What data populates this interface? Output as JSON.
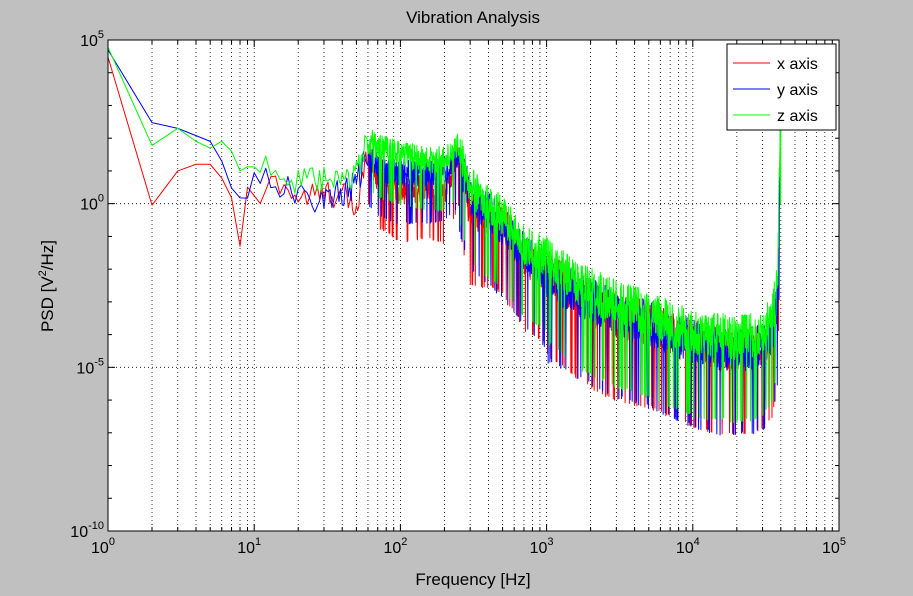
{
  "chart_data": {
    "type": "line",
    "title": "Vibration Analysis",
    "xlabel": "Frequency [Hz]",
    "ylabel_parts": {
      "main": "PSD [V",
      "sup": "2",
      "tail": "/Hz]"
    },
    "xscale": "log",
    "yscale": "log",
    "xlim": [
      1,
      100000
    ],
    "ylim": [
      1e-10,
      100000
    ],
    "x_ticks": [
      {
        "base": "10",
        "exp": "0",
        "value": 1
      },
      {
        "base": "10",
        "exp": "1",
        "value": 10
      },
      {
        "base": "10",
        "exp": "2",
        "value": 100
      },
      {
        "base": "10",
        "exp": "3",
        "value": 1000
      },
      {
        "base": "10",
        "exp": "4",
        "value": 10000
      },
      {
        "base": "10",
        "exp": "5",
        "value": 100000
      }
    ],
    "y_ticks": [
      {
        "base": "10",
        "exp": "-10",
        "value": 1e-10
      },
      {
        "base": "10",
        "exp": "-5",
        "value": 1e-05
      },
      {
        "base": "10",
        "exp": "0",
        "value": 1
      },
      {
        "base": "10",
        "exp": "5",
        "value": 100000
      }
    ],
    "grid": true,
    "legend_position": "top-right",
    "series": [
      {
        "name": "x axis",
        "color": "#ff0000",
        "points": [
          [
            1,
            30000
          ],
          [
            2,
            0.9
          ],
          [
            3,
            10
          ],
          [
            4,
            16
          ],
          [
            5,
            16
          ],
          [
            6,
            6
          ],
          [
            7,
            1.5
          ],
          [
            8,
            0.05
          ],
          [
            9,
            1.5
          ],
          [
            10,
            3
          ],
          [
            11,
            0.5
          ],
          [
            12,
            3
          ],
          [
            15,
            5
          ],
          [
            20,
            1.5
          ],
          [
            30,
            2
          ],
          [
            40,
            2
          ],
          [
            50,
            0.6
          ],
          [
            60,
            40
          ],
          [
            70,
            5
          ],
          [
            80,
            5
          ],
          [
            100,
            2
          ],
          [
            150,
            3
          ],
          [
            200,
            2
          ],
          [
            250,
            30
          ],
          [
            300,
            0.5
          ],
          [
            400,
            0.4
          ],
          [
            500,
            0.3
          ],
          [
            700,
            0.02
          ],
          [
            1000,
            0.008
          ],
          [
            1500,
            0.002
          ],
          [
            2000,
            0.0008
          ],
          [
            3000,
            0.0003
          ],
          [
            5000,
            0.0002
          ],
          [
            7000,
            0.0001
          ],
          [
            10000,
            5e-05
          ],
          [
            15000,
            3e-05
          ],
          [
            20000,
            3e-05
          ],
          [
            25000,
            3e-05
          ],
          [
            30000,
            4e-05
          ],
          [
            35000,
            0.0001
          ],
          [
            38000,
            0.001
          ],
          [
            40000,
            500
          ]
        ]
      },
      {
        "name": "y axis",
        "color": "#0000ff",
        "points": [
          [
            1,
            50000
          ],
          [
            2,
            300
          ],
          [
            3,
            200
          ],
          [
            4,
            120
          ],
          [
            5,
            80
          ],
          [
            6,
            20
          ],
          [
            7,
            3
          ],
          [
            8,
            1.5
          ],
          [
            9,
            3
          ],
          [
            10,
            5
          ],
          [
            12,
            8
          ],
          [
            15,
            4
          ],
          [
            20,
            1.5
          ],
          [
            30,
            1.5
          ],
          [
            40,
            2
          ],
          [
            50,
            4
          ],
          [
            60,
            30
          ],
          [
            70,
            15
          ],
          [
            80,
            10
          ],
          [
            100,
            8
          ],
          [
            150,
            8
          ],
          [
            200,
            10
          ],
          [
            250,
            25
          ],
          [
            300,
            1.5
          ],
          [
            400,
            0.5
          ],
          [
            500,
            0.2
          ],
          [
            700,
            0.03
          ],
          [
            1000,
            0.005
          ],
          [
            1500,
            0.002
          ],
          [
            2000,
            0.001
          ],
          [
            3000,
            0.0004
          ],
          [
            5000,
            0.0002
          ],
          [
            7000,
            0.0001
          ],
          [
            10000,
            5e-05
          ],
          [
            15000,
            3e-05
          ],
          [
            20000,
            3e-05
          ],
          [
            25000,
            3e-05
          ],
          [
            30000,
            4e-05
          ],
          [
            35000,
            0.0001
          ],
          [
            38000,
            0.001
          ],
          [
            40000,
            300
          ]
        ]
      },
      {
        "name": "z axis",
        "color": "#00ff00",
        "points": [
          [
            1,
            60000
          ],
          [
            2,
            60
          ],
          [
            3,
            200
          ],
          [
            4,
            80
          ],
          [
            5,
            50
          ],
          [
            6,
            80
          ],
          [
            7,
            40
          ],
          [
            8,
            10
          ],
          [
            9,
            15
          ],
          [
            10,
            20
          ],
          [
            12,
            15
          ],
          [
            15,
            10
          ],
          [
            20,
            4
          ],
          [
            30,
            5
          ],
          [
            40,
            4
          ],
          [
            50,
            10
          ],
          [
            60,
            80
          ],
          [
            70,
            50
          ],
          [
            80,
            40
          ],
          [
            100,
            30
          ],
          [
            150,
            20
          ],
          [
            200,
            20
          ],
          [
            250,
            50
          ],
          [
            300,
            3
          ],
          [
            400,
            0.8
          ],
          [
            500,
            0.4
          ],
          [
            700,
            0.05
          ],
          [
            1000,
            0.02
          ],
          [
            1500,
            0.004
          ],
          [
            2000,
            0.002
          ],
          [
            3000,
            0.0008
          ],
          [
            5000,
            0.0004
          ],
          [
            7000,
            0.0002
          ],
          [
            10000,
            0.0001
          ],
          [
            15000,
            8e-05
          ],
          [
            20000,
            7e-05
          ],
          [
            25000,
            8e-05
          ],
          [
            30000,
            0.0001
          ],
          [
            35000,
            0.0003
          ],
          [
            38000,
            0.003
          ],
          [
            40000,
            1000
          ]
        ]
      }
    ]
  }
}
